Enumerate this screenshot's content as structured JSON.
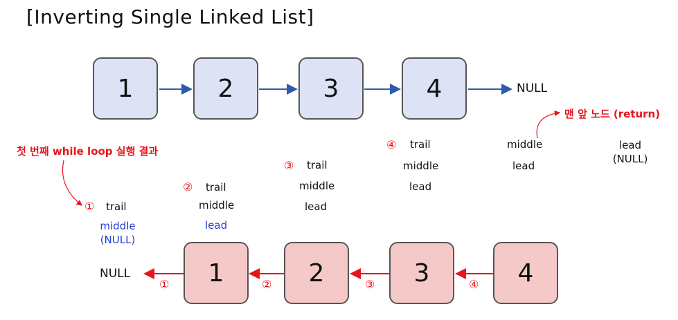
{
  "title": "[Inverting Single Linked List]",
  "top_list": {
    "nodes": [
      "1",
      "2",
      "3",
      "4"
    ],
    "null_label": "NULL"
  },
  "bottom_list": {
    "nodes": [
      "1",
      "2",
      "3",
      "4"
    ],
    "null_label": "NULL",
    "step_markers": [
      "①",
      "②",
      "③",
      "④"
    ]
  },
  "annotations": {
    "first_loop_result": "첫 번째 while loop 실행 결과",
    "front_node_return": "맨 앞 노드 (return)"
  },
  "steps": [
    {
      "marker": "①",
      "trail": "trail",
      "middle": "middle",
      "middle_sub": "(NULL)"
    },
    {
      "marker": "②",
      "trail": "trail",
      "middle": "middle",
      "lead": "lead"
    },
    {
      "marker": "③",
      "trail": "trail",
      "middle": "middle",
      "lead": "lead"
    },
    {
      "marker": "④",
      "trail": "trail",
      "middle": "middle",
      "lead": "lead"
    }
  ],
  "final_state": {
    "middle": "middle",
    "lead": "lead",
    "lead_end": "lead",
    "lead_end_sub": "(NULL)"
  },
  "colors": {
    "top_node_fill": "#dde3f4",
    "bottom_node_fill": "#f6c9c9",
    "top_arrow": "#2f5aa8",
    "bottom_arrow": "#e8141b",
    "annotation": "#e8141b",
    "highlight_text": "#1f3fd0"
  }
}
